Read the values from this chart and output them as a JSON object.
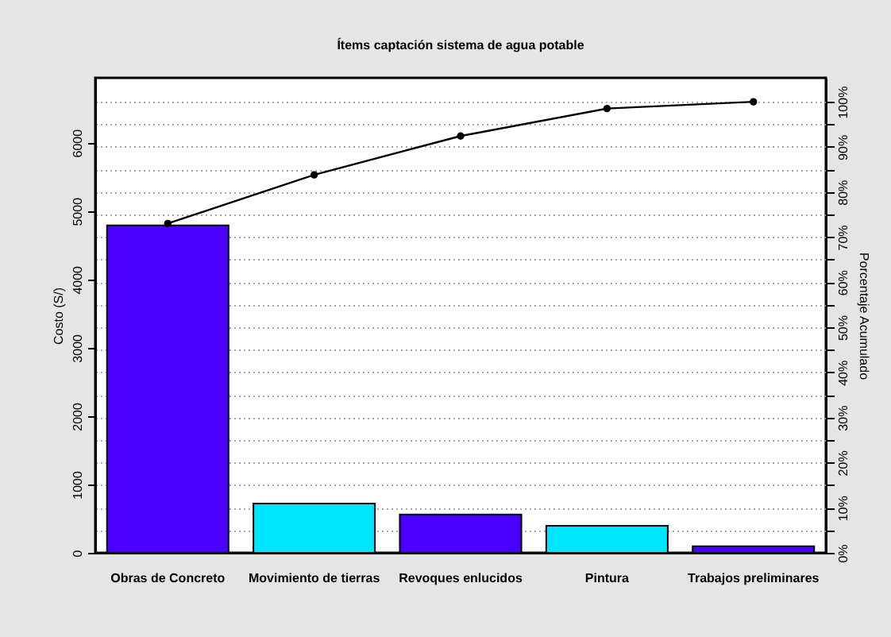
{
  "chart_data": {
    "type": "bar",
    "title": "Ítems captación sistema de agua potable",
    "ylabel": "Costo (S/)",
    "y2label": "Porcentaje Acumulado",
    "categories": [
      "Obras de Concreto",
      "Movimiento de tierras",
      "Revoques enlucidos",
      "Pintura",
      "Trabajos preliminares"
    ],
    "series": [
      {
        "colors": [
          "#4b00ff",
          "#00e5ff",
          "#4b00ff",
          "#00e5ff",
          "#4b00ff"
        ],
        "values": [
          4790,
          720,
          560,
          395,
          95
        ]
      },
      {
        "type": "line",
        "axis": "y2",
        "color": "#000000",
        "values": [
          73.0,
          83.8,
          92.4,
          98.5,
          100
        ]
      }
    ],
    "ylim": [
      0,
      6950
    ],
    "yticks": [
      0,
      1000,
      2000,
      3000,
      4000,
      5000,
      6000
    ],
    "y2lim": [
      0,
      105.3
    ],
    "y2ticks": [
      {
        "value": 0,
        "label": "0%"
      },
      {
        "value": 5,
        "label": null
      },
      {
        "value": 10,
        "label": "10%"
      },
      {
        "value": 15,
        "label": null
      },
      {
        "value": 20,
        "label": "20%"
      },
      {
        "value": 25,
        "label": null
      },
      {
        "value": 30,
        "label": "30%"
      },
      {
        "value": 35,
        "label": null
      },
      {
        "value": 40,
        "label": "40%"
      },
      {
        "value": 45,
        "label": null
      },
      {
        "value": 50,
        "label": "50%"
      },
      {
        "value": 55,
        "label": null
      },
      {
        "value": 60,
        "label": "60%"
      },
      {
        "value": 65,
        "label": null
      },
      {
        "value": 70,
        "label": "70%"
      },
      {
        "value": 75,
        "label": null
      },
      {
        "value": 80,
        "label": "80%"
      },
      {
        "value": 85,
        "label": null
      },
      {
        "value": 90,
        "label": "90%"
      },
      {
        "value": 95,
        "label": null
      },
      {
        "value": 100,
        "label": "100%"
      }
    ],
    "grid": true,
    "marker": "circle"
  }
}
